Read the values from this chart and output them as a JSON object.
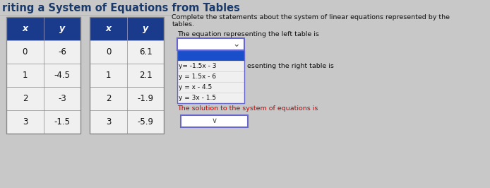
{
  "title": "riting a System of Equations from Tables",
  "title_color": "#1a3a6b",
  "background_color": "#c8c8c8",
  "left_table": {
    "headers": [
      "x",
      "y"
    ],
    "rows": [
      [
        "0",
        "-6"
      ],
      [
        "1",
        "-4.5"
      ],
      [
        "2",
        "-3"
      ],
      [
        "3",
        "-1.5"
      ]
    ]
  },
  "right_table": {
    "headers": [
      "x",
      "y"
    ],
    "rows": [
      [
        "0",
        "6.1"
      ],
      [
        "1",
        "2.1"
      ],
      [
        "2",
        "-1.9"
      ],
      [
        "3",
        "-5.9"
      ]
    ]
  },
  "header_bg": "#1a3a8c",
  "header_fg": "#ffffff",
  "row_bg": "#f0f0f0",
  "cell_text_color": "#111111",
  "table_border_color": "#888888",
  "right_panel_text_line1": "Complete the statements about the system of linear equations represented by the",
  "right_panel_text_line2": "tables.",
  "equation_label": "The equation representing the left table is",
  "dropdown_box_color": "#ffffff",
  "dropdown_border_color": "#6666cc",
  "dropdown_highlight_color": "#1a4fcc",
  "dropdown_items": [
    "y= -1.5x - 3",
    "y = 1.5x - 6",
    "y = x - 4.5",
    "y = 3x - 1.5"
  ],
  "right_table_label": "esenting the right table is",
  "solution_label": "The solution to the system of equations is",
  "solution_dropdown_color": "#ffffff",
  "solution_dropdown_border": "#6666cc"
}
